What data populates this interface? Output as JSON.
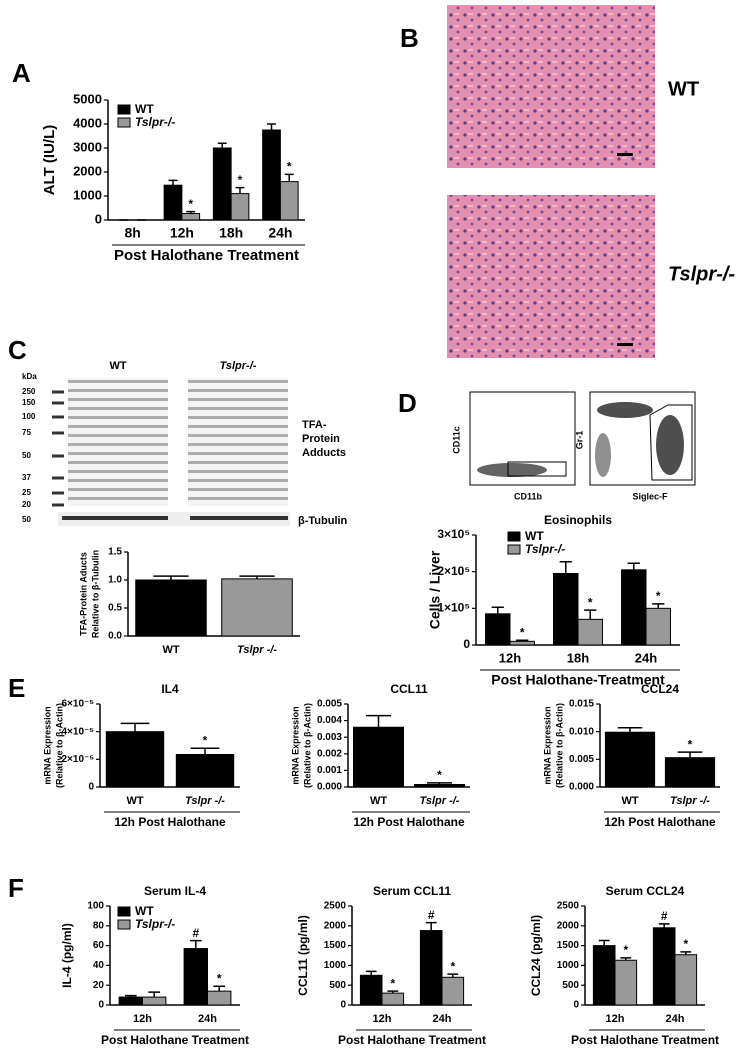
{
  "panel_labels": [
    "A",
    "B",
    "C",
    "D",
    "E",
    "F"
  ],
  "histology": {
    "labels": [
      "WT",
      "Tslpr-/-"
    ]
  },
  "blot": {
    "group_labels": [
      "WT",
      "Tslpr-/-"
    ],
    "unit": "kDa",
    "markers": [
      250,
      150,
      100,
      75,
      50,
      37,
      25,
      20
    ],
    "tubulin_marker": 50,
    "adduct_label": [
      "TFA-",
      "Protein",
      "Adducts"
    ],
    "tubulin_label": "β-Tubulin"
  },
  "flow": {
    "axes": [
      "CD11c",
      "CD11b",
      "Gr-1",
      "Siglec-F"
    ]
  },
  "chart_data": [
    {
      "type": "bar",
      "y_label": "ALT (IU/L)",
      "x_label": "Post Halothane Treatment",
      "categories": [
        "8h",
        "12h",
        "18h",
        "24h"
      ],
      "ylim": [
        0,
        5000
      ],
      "yticks": [
        0,
        1000,
        2000,
        3000,
        4000,
        5000
      ],
      "legend": "upper left",
      "series": [
        {
          "name": "WT",
          "color": "#000000",
          "values": [
            0,
            1450,
            3000,
            3750
          ],
          "errors": [
            0,
            200,
            200,
            250
          ],
          "marks": [
            null,
            null,
            null,
            null
          ]
        },
        {
          "name": "Tslpr-/-",
          "color": "#999999",
          "values": [
            0,
            270,
            1100,
            1600
          ],
          "errors": [
            0,
            80,
            250,
            300
          ],
          "marks": [
            null,
            "*",
            "*",
            "*"
          ]
        }
      ]
    },
    {
      "type": "bar",
      "y_label": [
        "TFA-Protein Aducts",
        "Relative to β-Tubulin"
      ],
      "categories": [
        "WT",
        "Tslpr -/-"
      ],
      "values": [
        1.0,
        1.02
      ],
      "errors": [
        0.07,
        0.05
      ],
      "colors": [
        "#000000",
        "#999999"
      ],
      "ylim": [
        0,
        1.5
      ],
      "yticks": [
        {
          "value": 0,
          "label": "0.0"
        },
        {
          "value": 0.5,
          "label": "0.5"
        },
        {
          "value": 1,
          "label": "1.0"
        },
        {
          "value": 1.5,
          "label": "1.5"
        }
      ]
    },
    {
      "type": "bar",
      "title": "Eosinophils",
      "y_label": "Cells / Liver",
      "x_label": "Post Halothane-Treatment",
      "categories": [
        "12h",
        "18h",
        "24h"
      ],
      "ylim": [
        0,
        300000
      ],
      "yticks": [
        0,
        {
          "value": 100000,
          "label": "1×10⁵"
        },
        {
          "value": 200000,
          "label": "2×10⁵"
        },
        {
          "value": 300000,
          "label": "3×10⁵"
        }
      ],
      "legend": "upper left",
      "series": [
        {
          "name": "WT",
          "color": "#000000",
          "values": [
            85000,
            195000,
            205000
          ],
          "errors": [
            18000,
            32000,
            18000
          ],
          "marks": [
            null,
            null,
            null
          ]
        },
        {
          "name": "Tslpr-/-",
          "color": "#999999",
          "values": [
            10000,
            70000,
            100000
          ],
          "errors": [
            3000,
            25000,
            12000
          ],
          "marks": [
            "*",
            "*",
            "*"
          ]
        }
      ]
    },
    {
      "type": "bar",
      "title": "IL4",
      "y_label": [
        "mRNA Expression",
        "(Relative to β-Actin)"
      ],
      "x_label": "12h Post Halothane",
      "categories": [
        "WT",
        "Tslpr -/-"
      ],
      "values": [
        4e-05,
        2.35e-05
      ],
      "errors": [
        6e-06,
        4.5e-06
      ],
      "colors": [
        "#000000",
        "#000000"
      ],
      "marks": [
        null,
        "*"
      ],
      "ylim": [
        0,
        6e-05
      ],
      "yticks": [
        0,
        {
          "value": 2e-05,
          "label": "2×10⁻⁵"
        },
        {
          "value": 4e-05,
          "label": "4×10⁻⁵"
        },
        {
          "value": 6e-05,
          "label": "6×10⁻⁵"
        }
      ]
    },
    {
      "type": "bar",
      "title": "CCL11",
      "y_label": [
        "mRNA Expression",
        "(Relative to β-Actin)"
      ],
      "x_label": "12h Post Halothane",
      "categories": [
        "WT",
        "Tslpr -/-"
      ],
      "values": [
        0.0036,
        0.00015
      ],
      "errors": [
        0.0007,
        0.0001
      ],
      "colors": [
        "#000000",
        "#000000"
      ],
      "marks": [
        null,
        "*"
      ],
      "ylim": [
        0,
        0.005
      ],
      "yticks": [
        {
          "value": 0,
          "label": "0.000"
        },
        {
          "value": 0.001,
          "label": "0.001"
        },
        {
          "value": 0.002,
          "label": "0.002"
        },
        {
          "value": 0.003,
          "label": "0.003"
        },
        {
          "value": 0.004,
          "label": "0.004"
        },
        {
          "value": 0.005,
          "label": "0.005"
        }
      ]
    },
    {
      "type": "bar",
      "title": "CCL24",
      "y_label": [
        "mRNA Expression",
        "(Relative to β-Actin)"
      ],
      "x_label": "12h Post Halothane",
      "categories": [
        "WT",
        "Tslpr -/-"
      ],
      "values": [
        0.0099,
        0.0053
      ],
      "errors": [
        0.0008,
        0.001
      ],
      "colors": [
        "#000000",
        "#000000"
      ],
      "marks": [
        null,
        "*"
      ],
      "ylim": [
        0,
        0.015
      ],
      "yticks": [
        {
          "value": 0,
          "label": "0.000"
        },
        {
          "value": 0.005,
          "label": "0.005"
        },
        {
          "value": 0.01,
          "label": "0.010"
        },
        {
          "value": 0.015,
          "label": "0.015"
        }
      ]
    },
    {
      "type": "bar",
      "title": "Serum IL-4",
      "y_label": "IL-4 (pg/ml)",
      "x_label": "Post Halothane Treatment",
      "categories": [
        "12h",
        "24h"
      ],
      "ylim": [
        0,
        100
      ],
      "yticks": [
        0,
        20,
        40,
        60,
        80,
        100
      ],
      "legend": "upper left",
      "series": [
        {
          "name": "WT",
          "color": "#000000",
          "values": [
            8,
            57
          ],
          "errors": [
            1.5,
            8
          ],
          "marks": [
            null,
            "#"
          ]
        },
        {
          "name": "Tslpr-/-",
          "color": "#999999",
          "values": [
            8,
            14
          ],
          "errors": [
            5,
            5
          ],
          "marks": [
            null,
            "*"
          ]
        }
      ]
    },
    {
      "type": "bar",
      "title": "Serum CCL11",
      "y_label": "CCL11 (pg/ml)",
      "x_label": "Post Halothane Treatment",
      "categories": [
        "12h",
        "24h"
      ],
      "ylim": [
        0,
        2500
      ],
      "yticks": [
        0,
        500,
        1000,
        1500,
        2000,
        2500
      ],
      "series": [
        {
          "name": "WT",
          "color": "#000000",
          "values": [
            750,
            1880
          ],
          "errors": [
            100,
            200
          ],
          "marks": [
            null,
            "#"
          ]
        },
        {
          "name": "Tslpr-/-",
          "color": "#999999",
          "values": [
            300,
            700
          ],
          "errors": [
            50,
            80
          ],
          "marks": [
            "*",
            "*"
          ]
        }
      ]
    },
    {
      "type": "bar",
      "title": "Serum CCL24",
      "y_label": "CCL24 (pg/ml)",
      "x_label": "Post Halothane Treatment",
      "categories": [
        "12h",
        "24h"
      ],
      "ylim": [
        0,
        2500
      ],
      "yticks": [
        0,
        500,
        1000,
        1500,
        2000,
        2500
      ],
      "series": [
        {
          "name": "WT",
          "color": "#000000",
          "values": [
            1500,
            1950
          ],
          "errors": [
            130,
            100
          ],
          "marks": [
            null,
            "#"
          ]
        },
        {
          "name": "Tslpr-/-",
          "color": "#999999",
          "values": [
            1130,
            1270
          ],
          "errors": [
            60,
            70
          ],
          "marks": [
            "*",
            "*"
          ]
        }
      ]
    }
  ]
}
